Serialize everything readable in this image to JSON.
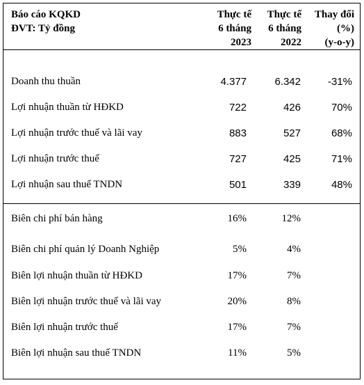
{
  "header": {
    "title_line1": "Báo cáo KQKD",
    "title_line2": "ĐVT: Tỷ đồng",
    "col2023": [
      "Thực tế",
      "6 tháng",
      "2023"
    ],
    "col2022": [
      "Thực tế",
      "6 tháng",
      "2022"
    ],
    "colchange": [
      "Thay đổi",
      "(%)",
      "(y-o-y)"
    ]
  },
  "section1": [
    {
      "label": "Doanh thu thuần",
      "v2023": "4.377",
      "v2022": "6.342",
      "change": "-31%"
    },
    {
      "label": "Lợi nhuận thuần từ HĐKD",
      "v2023": "722",
      "v2022": "426",
      "change": "70%"
    },
    {
      "label": "Lợi nhuận trước thuế và lãi vay",
      "v2023": "883",
      "v2022": "527",
      "change": "68%"
    },
    {
      "label": "Lợi nhuận trước thuế",
      "v2023": "727",
      "v2022": "425",
      "change": "71%"
    },
    {
      "label": "Lợi nhuận sau thuế TNDN",
      "v2023": "501",
      "v2022": "339",
      "change": "48%"
    }
  ],
  "section2": [
    {
      "label": "Biên chi phí bán hàng",
      "v2023": "16%",
      "v2022": "12%"
    },
    {
      "label": "Biên chi phí quản lý Doanh Nghiệp",
      "v2023": "5%",
      "v2022": "4%"
    },
    {
      "label": "Biên lợi nhuận thuần từ HĐKD",
      "v2023": "17%",
      "v2022": "7%"
    },
    {
      "label": "Biên lợi nhuận trước thuế và lãi vay",
      "v2023": "20%",
      "v2022": "8%"
    },
    {
      "label": "Biên lợi nhuận trước thuế",
      "v2023": "17%",
      "v2022": "7%"
    },
    {
      "label": "Biên lợi nhuận sau thuế TNDN",
      "v2023": "11%",
      "v2022": "5%"
    }
  ]
}
